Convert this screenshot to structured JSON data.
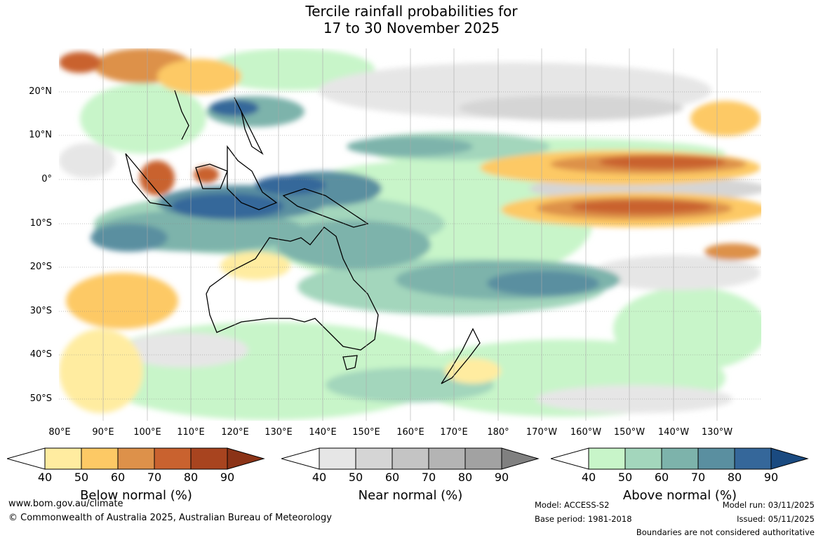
{
  "title": {
    "line1": "Tercile rainfall probabilities for",
    "line2": "17 to 30 November 2025"
  },
  "map": {
    "lat_labels": [
      "20°N",
      "10°N",
      "0°",
      "10°S",
      "20°S",
      "30°S",
      "40°S",
      "50°S"
    ],
    "lon_labels": [
      "80°E",
      "90°E",
      "100°E",
      "110°E",
      "120°E",
      "130°E",
      "140°E",
      "150°E",
      "160°E",
      "170°E",
      "180°",
      "170°W",
      "160°W",
      "150°W",
      "140°W",
      "130°W"
    ]
  },
  "colorbars": {
    "below": {
      "label": "Below normal (%)",
      "ticks": [
        "40",
        "50",
        "60",
        "70",
        "80",
        "90"
      ],
      "colors": [
        "#ffeca0",
        "#fdc965",
        "#dd914a",
        "#c9622f",
        "#a8441f",
        "#8b3317"
      ]
    },
    "near": {
      "label": "Near normal (%)",
      "ticks": [
        "40",
        "50",
        "60",
        "70",
        "80",
        "90"
      ],
      "colors": [
        "#e6e6e6",
        "#d5d5d5",
        "#c4c4c4",
        "#b4b4b4",
        "#a2a2a2",
        "#808080"
      ]
    },
    "above": {
      "label": "Above normal (%)",
      "ticks": [
        "40",
        "50",
        "60",
        "70",
        "80",
        "90"
      ],
      "colors": [
        "#c8f5c9",
        "#a3d6bc",
        "#7db3ab",
        "#5a8fa0",
        "#35679a",
        "#1a4a80"
      ]
    }
  },
  "footer": {
    "website": "www.bom.gov.au/climate",
    "copyright": "© Commonwealth of Australia 2025, Australian Bureau of Meteorology",
    "model": "Model: ACCESS-S2",
    "base_period": "Base period: 1981-2018",
    "model_run": "Model run: 03/11/2025",
    "issued": "Issued: 05/11/2025",
    "disclaimer": "Boundaries are not considered authoritative"
  }
}
